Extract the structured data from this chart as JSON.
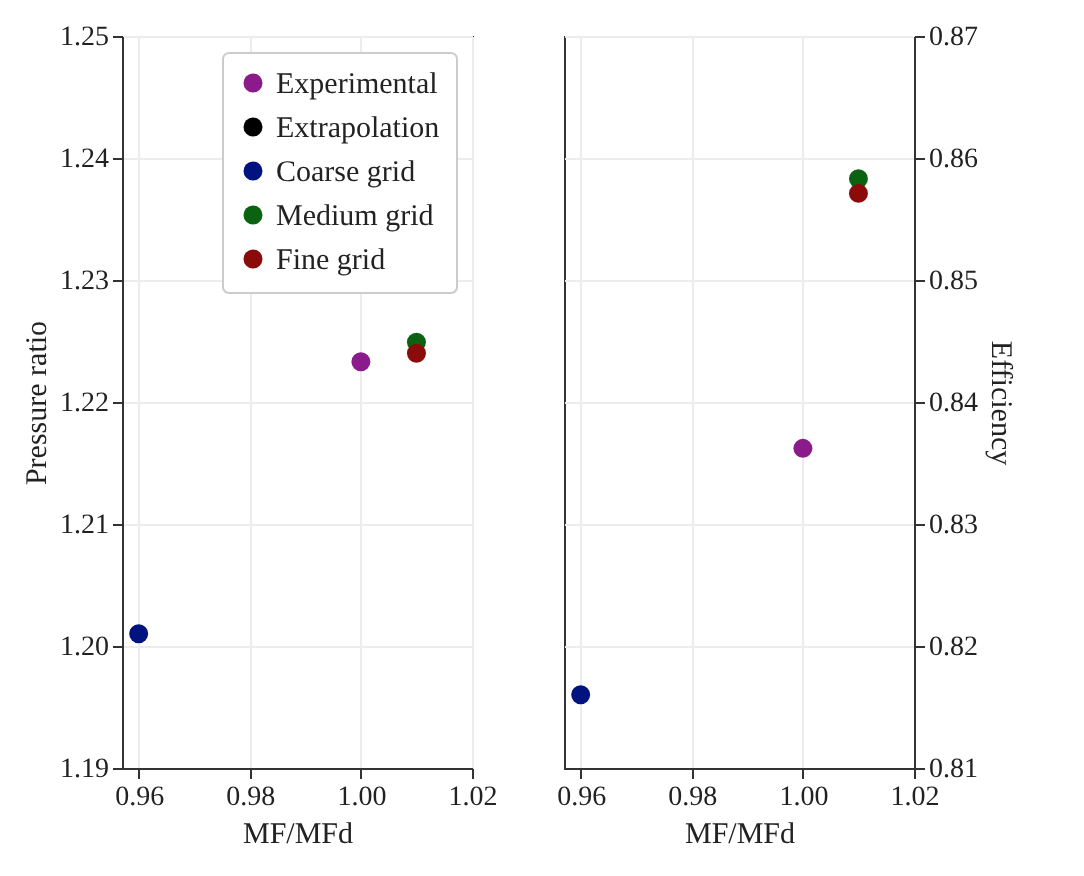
{
  "chart_data": [
    {
      "type": "scatter",
      "xlabel": "MF/MFd",
      "ylabel": "Pressure ratio",
      "xlim": [
        0.957,
        1.02
      ],
      "xticks": [
        {
          "value": 0.96,
          "label": "0.96"
        },
        {
          "value": 0.98,
          "label": "0.98"
        },
        {
          "value": 1.0,
          "label": "1.00"
        },
        {
          "value": 1.02,
          "label": "1.02"
        }
      ],
      "ylim": [
        1.19,
        1.25
      ],
      "yticks": [
        {
          "value": 1.19,
          "label": "1.19"
        },
        {
          "value": 1.2,
          "label": "1.20"
        },
        {
          "value": 1.21,
          "label": "1.21"
        },
        {
          "value": 1.22,
          "label": "1.22"
        },
        {
          "value": 1.23,
          "label": "1.23"
        },
        {
          "value": 1.24,
          "label": "1.24"
        },
        {
          "value": 1.25,
          "label": "1.25"
        }
      ],
      "grid": true,
      "legend": "top right",
      "marker": "circle",
      "series": [
        {
          "name": "Experimental",
          "color": "#8b1a8b",
          "x": [
            1.0
          ],
          "values": [
            1.2233
          ]
        },
        {
          "name": "Extrapolation",
          "color": "#000000"
        },
        {
          "name": "Coarse grid",
          "color": "#00137f",
          "x": [
            0.96
          ],
          "values": [
            1.201
          ]
        },
        {
          "name": "Medium grid",
          "color": "#0b6312",
          "x": [
            1.01
          ],
          "values": [
            1.2249
          ]
        },
        {
          "name": "Fine grid",
          "color": "#8b0a0a",
          "x": [
            1.01
          ],
          "values": [
            1.224
          ]
        }
      ]
    },
    {
      "type": "scatter",
      "xlabel": "MF/MFd",
      "y2label": "Efficiency",
      "xlim": [
        0.957,
        1.02
      ],
      "xticks": [
        {
          "value": 0.96,
          "label": "0.96"
        },
        {
          "value": 0.98,
          "label": "0.98"
        },
        {
          "value": 1.0,
          "label": "1.00"
        },
        {
          "value": 1.02,
          "label": "1.02"
        }
      ],
      "y2lim": [
        0.81,
        0.87
      ],
      "y2ticks": [
        0.81,
        0.82,
        0.83,
        0.84,
        0.85,
        0.86,
        0.87
      ],
      "grid": true,
      "marker": "circle",
      "series": [
        {
          "color": "#8b1a8b",
          "axis": "y2",
          "x": [
            1.0
          ],
          "values": [
            0.8362
          ]
        },
        {
          "color": "#000000",
          "axis": "y2"
        },
        {
          "color": "#00137f",
          "axis": "y2",
          "x": [
            0.96
          ],
          "values": [
            0.816
          ]
        },
        {
          "color": "#0b6312",
          "axis": "y2",
          "x": [
            1.01
          ],
          "values": [
            0.8583
          ]
        },
        {
          "color": "#8b0a0a",
          "axis": "y2",
          "x": [
            1.01
          ],
          "values": [
            0.8571
          ]
        }
      ]
    }
  ]
}
